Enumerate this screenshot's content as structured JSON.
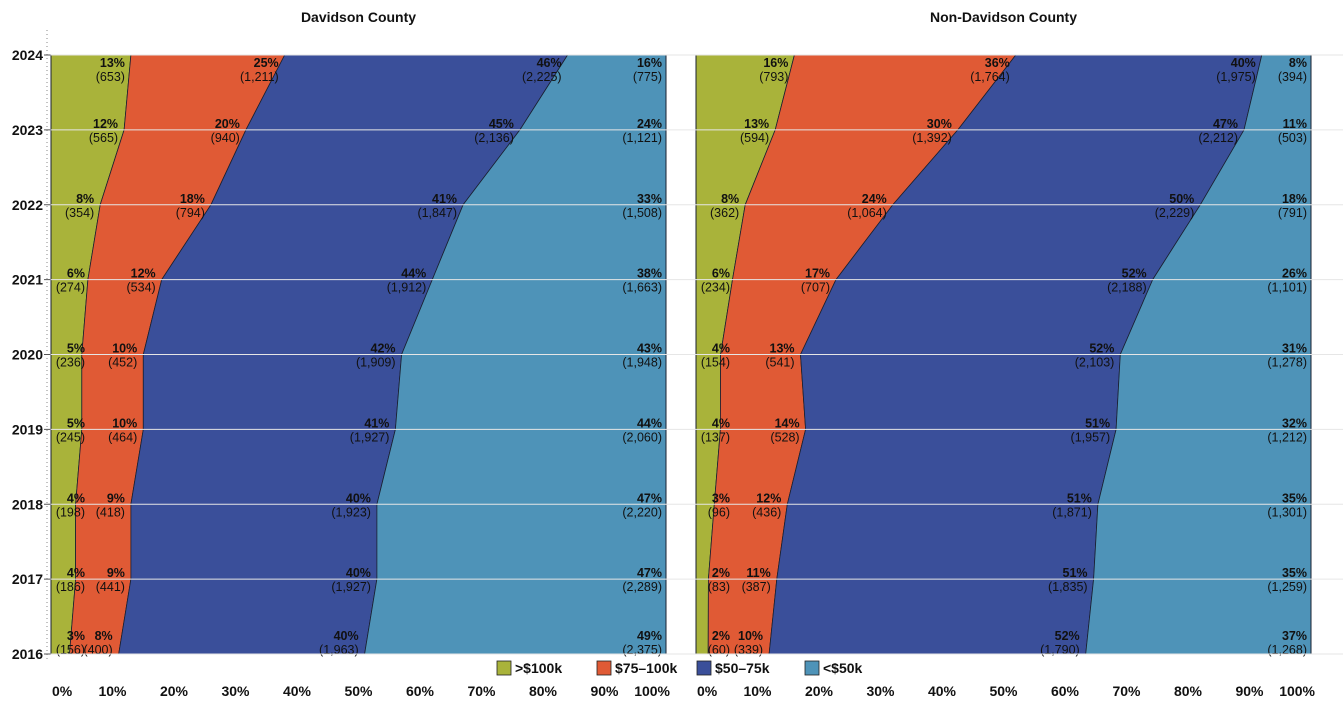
{
  "colors": {
    "gt100k": "#a9b33a",
    "r75_100k": "#e05a35",
    "r50_75k": "#3a4f9a",
    "lt50k": "#4e93b8",
    "outline": "#1a2030",
    "grid": "#e6e6e6"
  },
  "legend": {
    "items": [
      {
        "key": "gt100k",
        "label": ">$100k"
      },
      {
        "key": "r75_100k",
        "label": "$75–100k"
      },
      {
        "key": "r50_75k",
        "label": "$50–75k"
      },
      {
        "key": "lt50k",
        "label": "<$50k"
      }
    ],
    "placement": "bottom-center"
  },
  "chart_data": [
    {
      "type": "area",
      "orientation": "horizontal-stacked-100",
      "title": "Davidson County",
      "y": [
        2016,
        2017,
        2018,
        2019,
        2020,
        2021,
        2022,
        2023,
        2024
      ],
      "x_ticks": [
        "0%",
        "10%",
        "20%",
        "30%",
        "40%",
        "50%",
        "60%",
        "70%",
        "80%",
        "90%",
        "100%"
      ],
      "series": [
        {
          "name": ">$100k",
          "key": "gt100k",
          "pct": [
            3,
            4,
            4,
            5,
            5,
            6,
            8,
            12,
            13
          ],
          "pct_labels": [
            "3%",
            "4%",
            "4%",
            "5%",
            "5%",
            "6%",
            "8%",
            "12%",
            "13%"
          ],
          "counts": [
            "(156)",
            "(186)",
            "(198)",
            "(245)",
            "(236)",
            "(274)",
            "(354)",
            "(565)",
            "(653)"
          ]
        },
        {
          "name": "$75–100k",
          "key": "r75_100k",
          "pct": [
            8,
            9,
            9,
            10,
            10,
            12,
            18,
            20,
            25
          ],
          "pct_labels": [
            "8%",
            "9%",
            "9%",
            "10%",
            "10%",
            "12%",
            "18%",
            "20%",
            "25%"
          ],
          "counts": [
            "(400)",
            "(441)",
            "(418)",
            "(464)",
            "(452)",
            "(534)",
            "(794)",
            "(940)",
            "(1,211)"
          ]
        },
        {
          "name": "$50–75k",
          "key": "r50_75k",
          "pct": [
            40,
            40,
            40,
            41,
            42,
            44,
            41,
            45,
            46
          ],
          "pct_labels": [
            "40%",
            "40%",
            "40%",
            "41%",
            "42%",
            "44%",
            "41%",
            "45%",
            "46%"
          ],
          "counts": [
            "(1,963)",
            "(1,927)",
            "(1,923)",
            "(1,927)",
            "(1,909)",
            "(1,912)",
            "(1,847)",
            "(2,136)",
            "(2,225)"
          ]
        },
        {
          "name": "<$50k",
          "key": "lt50k",
          "pct": [
            49,
            47,
            47,
            44,
            43,
            38,
            33,
            24,
            16
          ],
          "pct_labels": [
            "49%",
            "47%",
            "47%",
            "44%",
            "43%",
            "38%",
            "33%",
            "24%",
            "16%"
          ],
          "counts": [
            "(2,375)",
            "(2,289)",
            "(2,220)",
            "(2,060)",
            "(1,948)",
            "(1,663)",
            "(1,508)",
            "(1,121)",
            "(775)"
          ]
        }
      ]
    },
    {
      "type": "area",
      "orientation": "horizontal-stacked-100",
      "title": "Non-Davidson County",
      "y": [
        2016,
        2017,
        2018,
        2019,
        2020,
        2021,
        2022,
        2023,
        2024
      ],
      "x_ticks": [
        "0%",
        "10%",
        "20%",
        "30%",
        "40%",
        "50%",
        "60%",
        "70%",
        "80%",
        "90%",
        "100%"
      ],
      "series": [
        {
          "name": ">$100k",
          "key": "gt100k",
          "pct": [
            2,
            2,
            3,
            4,
            4,
            6,
            8,
            13,
            16
          ],
          "pct_labels": [
            "2%",
            "2%",
            "3%",
            "4%",
            "4%",
            "6%",
            "8%",
            "13%",
            "16%"
          ],
          "counts": [
            "(60)",
            "(83)",
            "(96)",
            "(137)",
            "(154)",
            "(234)",
            "(362)",
            "(594)",
            "(793)"
          ]
        },
        {
          "name": "$75–100k",
          "key": "r75_100k",
          "pct": [
            10,
            11,
            12,
            14,
            13,
            17,
            24,
            30,
            36
          ],
          "pct_labels": [
            "10%",
            "11%",
            "12%",
            "14%",
            "13%",
            "17%",
            "24%",
            "30%",
            "36%"
          ],
          "counts": [
            "(339)",
            "(387)",
            "(436)",
            "(528)",
            "(541)",
            "(707)",
            "(1,064)",
            "(1,392)",
            "(1,764)"
          ]
        },
        {
          "name": "$50–75k",
          "key": "r50_75k",
          "pct": [
            52,
            51,
            51,
            51,
            52,
            52,
            50,
            47,
            40
          ],
          "pct_labels": [
            "52%",
            "51%",
            "51%",
            "51%",
            "52%",
            "52%",
            "50%",
            "47%",
            "40%"
          ],
          "counts": [
            "(1,790)",
            "(1,835)",
            "(1,871)",
            "(1,957)",
            "(2,103)",
            "(2,188)",
            "(2,229)",
            "(2,212)",
            "(1,975)"
          ]
        },
        {
          "name": "<$50k",
          "key": "lt50k",
          "pct": [
            37,
            35,
            35,
            32,
            31,
            26,
            18,
            11,
            8
          ],
          "pct_labels": [
            "37%",
            "35%",
            "35%",
            "32%",
            "31%",
            "26%",
            "18%",
            "11%",
            "8%"
          ],
          "counts": [
            "(1,268)",
            "(1,259)",
            "(1,301)",
            "(1,212)",
            "(1,278)",
            "(1,101)",
            "(791)",
            "(503)",
            "(394)"
          ]
        }
      ]
    }
  ]
}
